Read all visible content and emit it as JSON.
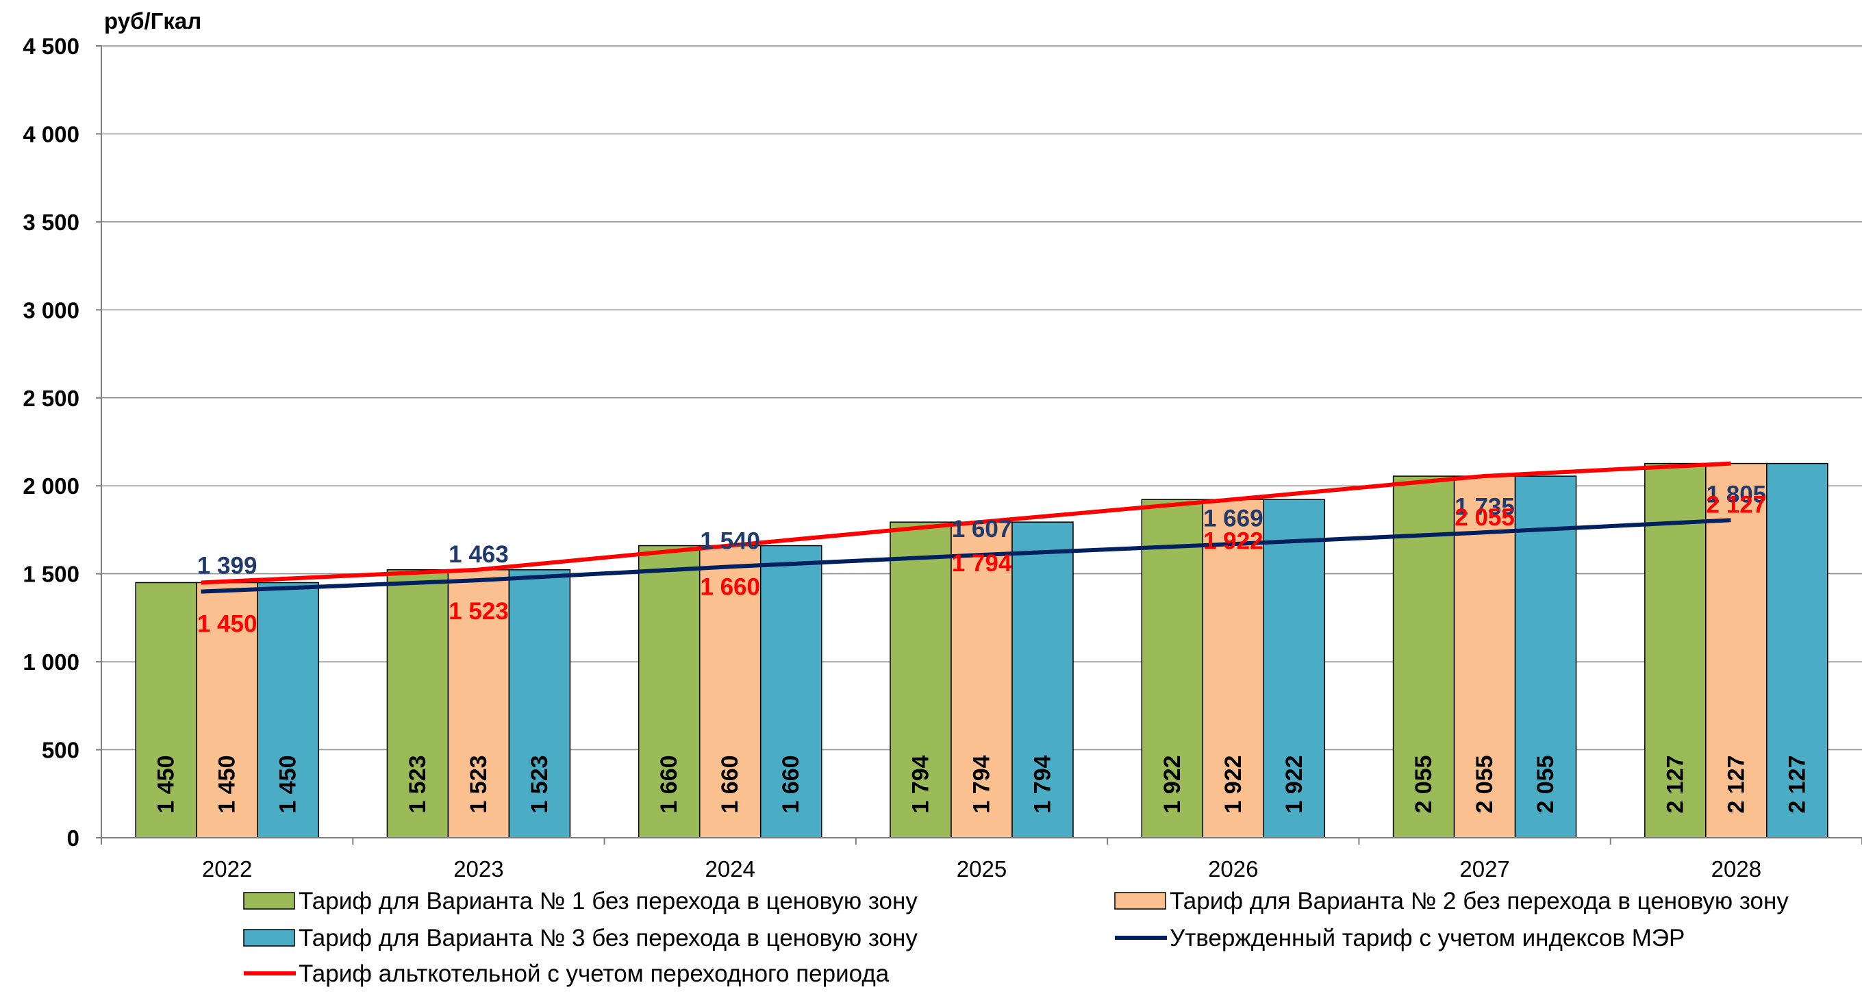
{
  "chart_data": {
    "type": "bar",
    "unit_label": "руб/Гкал",
    "categories": [
      "2022",
      "2023",
      "2024",
      "2025",
      "2026",
      "2027",
      "2028"
    ],
    "ylim": [
      0,
      4500
    ],
    "yticks": [
      0,
      500,
      1000,
      1500,
      2000,
      2500,
      3000,
      3500,
      4000,
      4500
    ],
    "ytick_labels": [
      "0",
      "500",
      "1 000",
      "1 500",
      "2 000",
      "2 500",
      "3 000",
      "3 500",
      "4 000",
      "4 500"
    ],
    "grid": true,
    "legend_position": "bottom",
    "series": [
      {
        "name": "Тариф для Варианта № 1 без перехода в ценовую зону",
        "kind": "bar",
        "color": "#9bbb59",
        "values": [
          1450,
          1523,
          1660,
          1794,
          1922,
          2055,
          2127
        ],
        "labels": [
          "1 450",
          "1 523",
          "1 660",
          "1 794",
          "1 922",
          "2 055",
          "2 127"
        ]
      },
      {
        "name": "Тариф для Варианта № 2 без перехода в ценовую зону",
        "kind": "bar",
        "color": "#fac090",
        "values": [
          1450,
          1523,
          1660,
          1794,
          1922,
          2055,
          2127
        ],
        "labels": [
          "1 450",
          "1 523",
          "1 660",
          "1 794",
          "1 922",
          "2 055",
          "2 127"
        ]
      },
      {
        "name": "Тариф для Варианта № 3 без перехода в ценовую зону",
        "kind": "bar",
        "color": "#4bacc6",
        "values": [
          1450,
          1523,
          1660,
          1794,
          1922,
          2055,
          2127
        ],
        "labels": [
          "1 450",
          "1 523",
          "1 660",
          "1 794",
          "1 922",
          "2 055",
          "2 127"
        ]
      },
      {
        "name": "Утвержденный тариф с учетом индексов МЭР",
        "kind": "line",
        "color": "#002060",
        "values": [
          1399,
          1463,
          1540,
          1607,
          1669,
          1735,
          1805
        ],
        "labels": [
          "1 399",
          "1 463",
          "1 540",
          "1 607",
          "1 669",
          "1 735",
          "1 805"
        ]
      },
      {
        "name": "Тариф альткотельной с учетом переходного периода",
        "kind": "line",
        "color": "#ff0000",
        "values": [
          1450,
          1523,
          1660,
          1794,
          1922,
          2055,
          2127
        ],
        "labels": [
          "1 450",
          "1 523",
          "1 660",
          "1 794",
          "1 922",
          "2 055",
          "2 127"
        ]
      }
    ]
  }
}
